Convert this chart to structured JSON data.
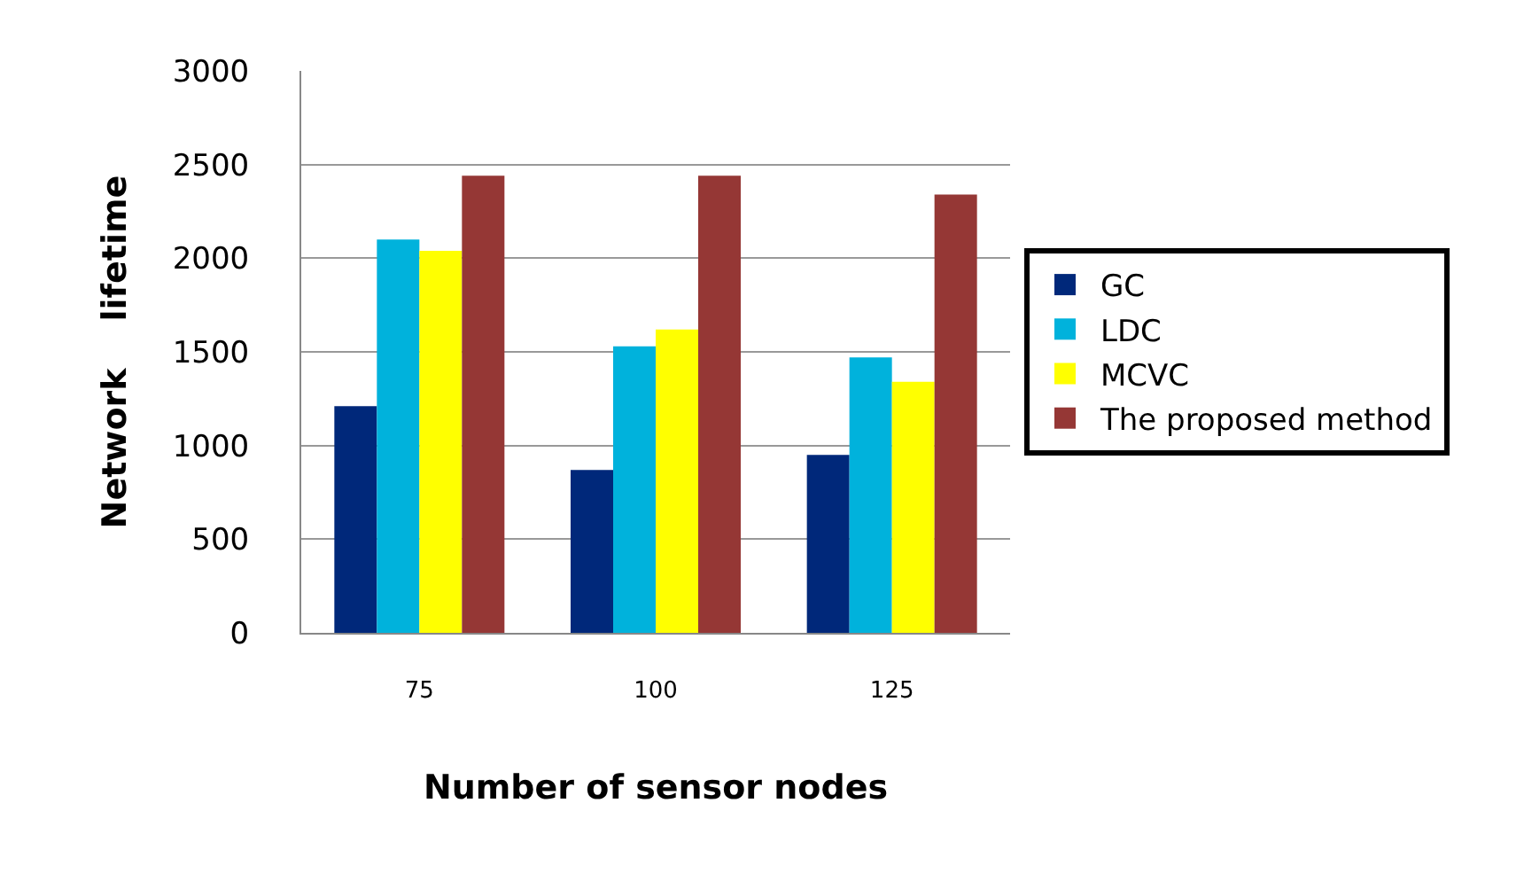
{
  "chart_data": {
    "type": "bar",
    "xlabel": "Number of sensor nodes",
    "ylabel": "Network    lifetime",
    "categories": [
      "75",
      "100",
      "125"
    ],
    "series": [
      {
        "name": "GC",
        "color": "#00287a",
        "values": [
          1210,
          870,
          950
        ]
      },
      {
        "name": "LDC",
        "color": "#00b2dc",
        "values": [
          2100,
          1530,
          1470
        ]
      },
      {
        "name": "MCVC",
        "color": "#ffff00",
        "values": [
          2040,
          1620,
          1340
        ]
      },
      {
        "name": "The proposed method",
        "color": "#953735",
        "values": [
          2440,
          2440,
          2340
        ]
      }
    ],
    "ylim": [
      0,
      3000
    ],
    "yticks": [
      0,
      500,
      1000,
      1500,
      2000,
      2500,
      3000
    ],
    "grid": "y",
    "legend": "right"
  }
}
